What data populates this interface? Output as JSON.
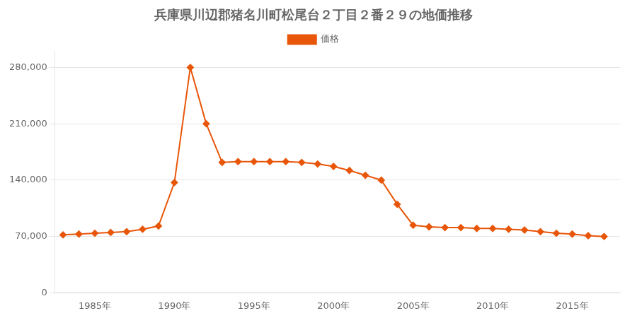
{
  "chart_data": {
    "type": "line",
    "title": "兵庫県川辺郡猪名川町松尾台２丁目２番２９の地価推移",
    "x": [
      1983,
      1984,
      1985,
      1986,
      1987,
      1988,
      1989,
      1990,
      1991,
      1992,
      1993,
      1994,
      1995,
      1996,
      1997,
      1998,
      1999,
      2000,
      2001,
      2002,
      2003,
      2004,
      2005,
      2006,
      2007,
      2008,
      2009,
      2010,
      2011,
      2012,
      2013,
      2014,
      2015,
      2016,
      2017
    ],
    "series": [
      {
        "name": "価格",
        "color": "#e8560a",
        "marker": "diamond",
        "line_style": "solid",
        "values": [
          72000,
          73000,
          74000,
          75000,
          76000,
          79000,
          83000,
          137000,
          280000,
          210000,
          162000,
          163000,
          163000,
          163000,
          163000,
          162000,
          160000,
          157000,
          152000,
          146000,
          140000,
          110000,
          84000,
          82000,
          81000,
          81000,
          80000,
          80000,
          79000,
          78000,
          76000,
          74000,
          73000,
          71000,
          70000
        ]
      }
    ],
    "xlim": [
      1982.5,
      2018
    ],
    "xticks": [
      {
        "value": 1985,
        "label": "1985年"
      },
      {
        "value": 1990,
        "label": "1990年"
      },
      {
        "value": 1995,
        "label": "1995年"
      },
      {
        "value": 2000,
        "label": "2000年"
      },
      {
        "value": 2005,
        "label": "2005年"
      },
      {
        "value": 2010,
        "label": "2010年"
      },
      {
        "value": 2015,
        "label": "2015年"
      }
    ],
    "ylim": [
      0,
      300000
    ],
    "yticks": [
      0,
      {
        "value": 70000,
        "label": "70,000"
      },
      {
        "value": 140000,
        "label": "140,000"
      },
      {
        "value": 210000,
        "label": "210,000"
      },
      {
        "value": 280000,
        "label": "280,000"
      }
    ],
    "grid": "y",
    "legend": "top"
  }
}
